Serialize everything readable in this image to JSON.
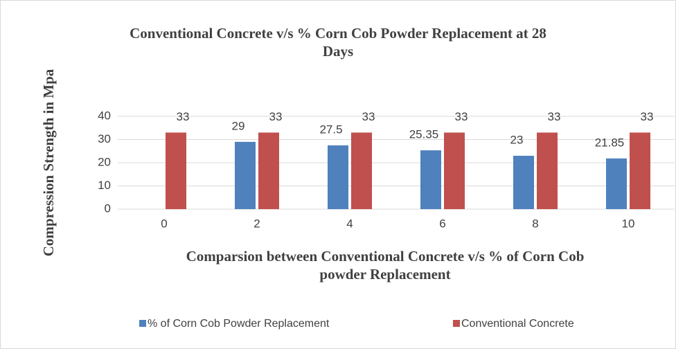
{
  "chart_data": {
    "type": "bar",
    "title": "Conventional Concrete v/s % Corn Cob Powder Replacement at 28 Days",
    "x_label": "Comparsion between Conventional Concrete v/s % of Corn Cob powder Replacement",
    "y_label": "Compression Strength in Mpa",
    "categories": [
      "0",
      "2",
      "4",
      "6",
      "8",
      "10"
    ],
    "series": [
      {
        "name": "% of Corn Cob Powder Replacement",
        "color": "#4f81bd",
        "values": [
          null,
          29,
          27.5,
          25.35,
          23,
          21.85
        ]
      },
      {
        "name": "Conventional Concrete",
        "color": "#c0504d",
        "values": [
          33,
          33,
          33,
          33,
          33,
          33
        ]
      }
    ],
    "ylim": [
      0,
      40
    ],
    "yticks": [
      0,
      10,
      20,
      30,
      40
    ],
    "grid": true,
    "legend": "bottom"
  }
}
